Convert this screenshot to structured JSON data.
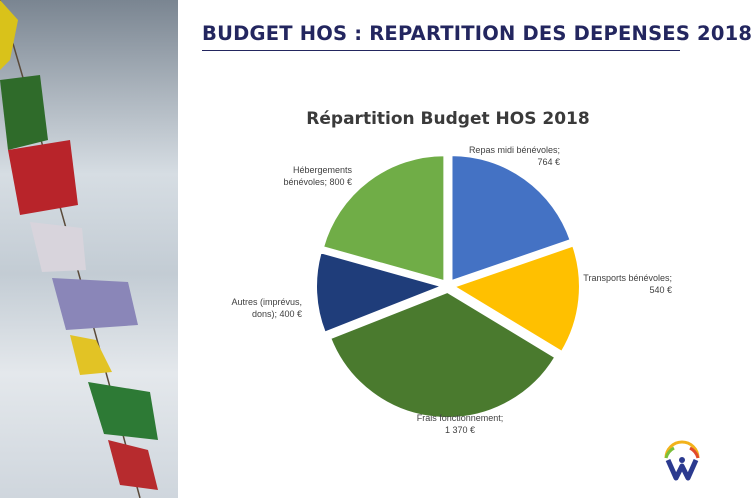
{
  "slide": {
    "title": "BUDGET HOS : REPARTITION DES DEPENSES 2018"
  },
  "colors": {
    "title": "#23265f",
    "rule": "#23265f"
  },
  "chart_data": {
    "type": "pie",
    "title": "Répartition Budget HOS 2018",
    "unit": "€",
    "start": "top, clockwise",
    "exploded": true,
    "slices": [
      {
        "label_lines": [
          "Repas midi bénévoles;",
          "764 €"
        ],
        "value": 764,
        "color": "#4472c4"
      },
      {
        "label_lines": [
          "Transports bénévoles;",
          "540 €"
        ],
        "value": 540,
        "color": "#ffc000"
      },
      {
        "label_lines": [
          "Frais fonctionnement;",
          "1 370 €"
        ],
        "value": 1370,
        "color": "#4a7a2e"
      },
      {
        "label_lines": [
          "Autres (imprévus,",
          "dons); 400 €"
        ],
        "value": 400,
        "color": "#1f3d7a"
      },
      {
        "label_lines": [
          "Hébergements",
          "bénévoles; 800 €"
        ],
        "value": 800,
        "color": "#70ad47"
      }
    ]
  }
}
